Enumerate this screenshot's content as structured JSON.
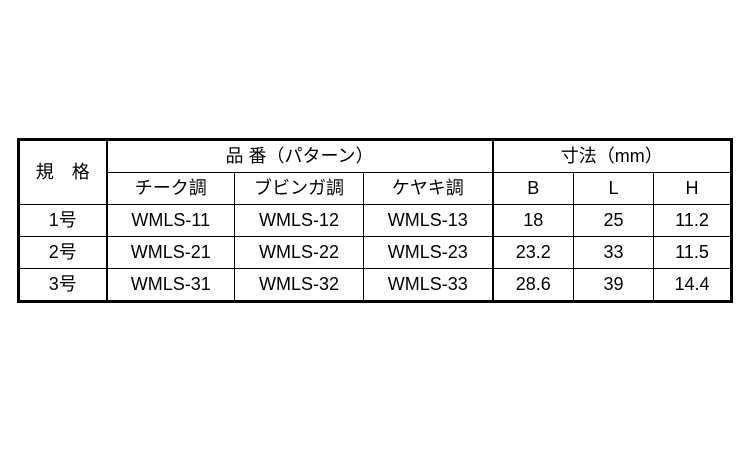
{
  "table": {
    "header": {
      "spec": "規　格",
      "part_group": "品 番（パターン）",
      "dim_group": "寸法（mm）",
      "patterns": [
        "チーク調",
        "ブビンガ調",
        "ケヤキ調"
      ],
      "dims": [
        "B",
        "L",
        "H"
      ]
    },
    "rows": [
      {
        "size": "1号",
        "parts": [
          "WMLS-11",
          "WMLS-12",
          "WMLS-13"
        ],
        "dims": [
          "18",
          "25",
          "11.2"
        ]
      },
      {
        "size": "2号",
        "parts": [
          "WMLS-21",
          "WMLS-22",
          "WMLS-23"
        ],
        "dims": [
          "23.2",
          "33",
          "11.5"
        ]
      },
      {
        "size": "3号",
        "parts": [
          "WMLS-31",
          "WMLS-32",
          "WMLS-33"
        ],
        "dims": [
          "28.6",
          "39",
          "14.4"
        ]
      }
    ]
  }
}
